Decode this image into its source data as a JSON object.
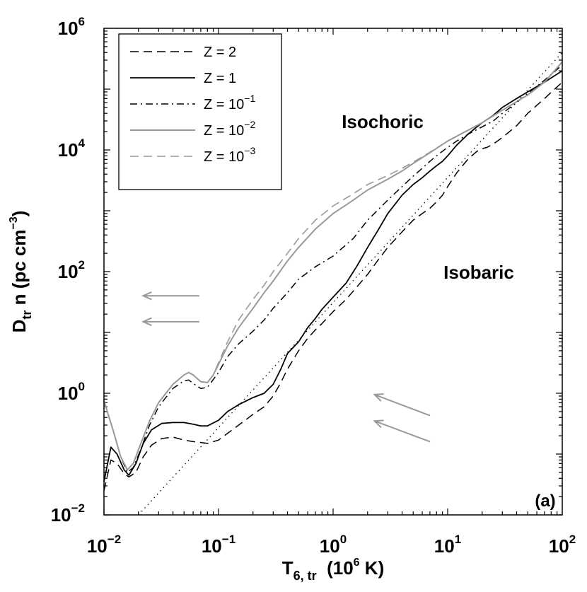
{
  "chart_data": {
    "type": "line",
    "xscale": "log",
    "yscale": "log",
    "xlim": [
      0.01,
      100
    ],
    "ylim": [
      0.01,
      1000000
    ],
    "xlabel": {
      "base": "T",
      "sub": "6, tr",
      "unit_pre": "(10",
      "unit_sup": "6",
      "unit_post": " K)"
    },
    "ylabel": {
      "base": "D",
      "sub": "tr",
      "mid": " n  (pc cm",
      "sup": "−3",
      "post": ")"
    },
    "xticks": [
      {
        "value": 0.01,
        "base": "10",
        "exp": "−2"
      },
      {
        "value": 0.1,
        "base": "10",
        "exp": "−1"
      },
      {
        "value": 1,
        "base": "10",
        "exp": "0"
      },
      {
        "value": 10,
        "base": "10",
        "exp": "1"
      },
      {
        "value": 100,
        "base": "10",
        "exp": "2"
      }
    ],
    "yticks": [
      {
        "value": 0.01,
        "base": "10",
        "exp": "−2"
      },
      {
        "value": 1,
        "base": "10",
        "exp": "0"
      },
      {
        "value": 100,
        "base": "10",
        "exp": "2"
      },
      {
        "value": 10000,
        "base": "10",
        "exp": "4"
      },
      {
        "value": 1000000,
        "base": "10",
        "exp": "6"
      }
    ],
    "annotations": {
      "isochoric": "Isochoric",
      "isobaric": "Isobaric",
      "panel": "(a)"
    },
    "arrows": [
      {
        "from": [
          0.068,
          40
        ],
        "to": [
          0.022,
          40
        ],
        "color": "#999999"
      },
      {
        "from": [
          0.068,
          15
        ],
        "to": [
          0.022,
          15
        ],
        "color": "#999999"
      },
      {
        "from": [
          7,
          0.43
        ],
        "to": [
          2.3,
          0.95
        ],
        "color": "#999999"
      },
      {
        "from": [
          7,
          0.16
        ],
        "to": [
          2.3,
          0.35
        ],
        "color": "#999999"
      }
    ],
    "series": [
      {
        "name": "Z = 2",
        "label_base": "Z = 2",
        "label_exp": "",
        "color": "#000000",
        "dash": "12,7",
        "width": 1.5,
        "x": [
          0.01,
          0.0115,
          0.013,
          0.015,
          0.0165,
          0.019,
          0.022,
          0.026,
          0.032,
          0.04,
          0.05,
          0.06,
          0.07,
          0.08,
          0.1,
          0.12,
          0.15,
          0.2,
          0.25,
          0.3,
          0.35,
          0.4,
          0.5,
          0.6,
          0.7,
          0.8,
          1,
          1.3,
          1.6,
          2,
          2.5,
          3,
          4,
          5,
          6,
          7,
          8,
          9,
          10,
          12,
          15,
          18,
          20,
          22,
          25,
          30,
          40,
          50,
          70,
          100
        ],
        "y": [
          0.025,
          0.08,
          0.07,
          0.048,
          0.042,
          0.05,
          0.09,
          0.14,
          0.18,
          0.19,
          0.17,
          0.16,
          0.155,
          0.15,
          0.17,
          0.22,
          0.3,
          0.45,
          0.6,
          0.9,
          1.5,
          2.5,
          5,
          8,
          11,
          14,
          22,
          35,
          55,
          90,
          160,
          250,
          450,
          700,
          900,
          1100,
          1400,
          1800,
          2500,
          4200,
          7000,
          9500,
          10500,
          11000,
          12500,
          16000,
          25000,
          40000,
          70000,
          130000
        ]
      },
      {
        "name": "Z = 1",
        "label_base": "Z = 1",
        "label_exp": "",
        "color": "#000000",
        "dash": "",
        "width": 1.8,
        "x": [
          0.01,
          0.0115,
          0.013,
          0.015,
          0.0165,
          0.019,
          0.022,
          0.026,
          0.032,
          0.04,
          0.05,
          0.06,
          0.07,
          0.08,
          0.1,
          0.12,
          0.15,
          0.2,
          0.25,
          0.3,
          0.35,
          0.4,
          0.5,
          0.6,
          0.7,
          0.8,
          1,
          1.3,
          1.6,
          2,
          2.5,
          3,
          4,
          5,
          6,
          7,
          8,
          9,
          10,
          12,
          15,
          18,
          20,
          25,
          30,
          40,
          50,
          70,
          100
        ],
        "y": [
          0.035,
          0.13,
          0.1,
          0.055,
          0.045,
          0.07,
          0.15,
          0.25,
          0.32,
          0.33,
          0.33,
          0.31,
          0.29,
          0.29,
          0.36,
          0.5,
          0.65,
          0.85,
          1.0,
          1.4,
          2.5,
          4.5,
          7,
          12,
          17,
          24,
          38,
          65,
          120,
          250,
          500,
          900,
          1800,
          2700,
          3500,
          4500,
          5500,
          6500,
          8000,
          12000,
          18000,
          24000,
          28000,
          37000,
          50000,
          70000,
          90000,
          130000,
          200000
        ]
      },
      {
        "name": "Z = 10^-1",
        "label_base": "Z = 10",
        "label_exp": "−1",
        "color": "#000000",
        "dash": "10,5,2,5",
        "width": 1.5,
        "x": [
          0.01,
          0.012,
          0.014,
          0.016,
          0.018,
          0.021,
          0.025,
          0.03,
          0.04,
          0.05,
          0.055,
          0.06,
          0.07,
          0.08,
          0.1,
          0.12,
          0.15,
          0.2,
          0.25,
          0.3,
          0.4,
          0.5,
          0.7,
          1,
          1.5,
          2,
          3,
          4,
          5,
          6,
          7,
          8,
          9,
          10,
          12,
          15,
          20,
          25,
          30,
          40,
          50,
          70,
          100
        ],
        "y": [
          0.75,
          0.25,
          0.09,
          0.05,
          0.06,
          0.12,
          0.3,
          0.6,
          1.2,
          1.6,
          1.65,
          1.45,
          1.2,
          1.25,
          2.2,
          4,
          6.5,
          10.5,
          16,
          25,
          45,
          75,
          120,
          180,
          350,
          700,
          1500,
          2500,
          3700,
          5000,
          6500,
          8000,
          9500,
          11000,
          14000,
          18000,
          24000,
          30000,
          40000,
          60000,
          85000,
          140000,
          250000
        ]
      },
      {
        "name": "Z = 10^-2",
        "label_base": "Z = 10",
        "label_exp": "−2",
        "color": "#999999",
        "dash": "",
        "width": 2,
        "x": [
          0.01,
          0.012,
          0.014,
          0.016,
          0.018,
          0.021,
          0.025,
          0.03,
          0.04,
          0.05,
          0.055,
          0.06,
          0.07,
          0.08,
          0.09,
          0.1,
          0.12,
          0.15,
          0.2,
          0.25,
          0.3,
          0.4,
          0.5,
          0.7,
          1,
          1.5,
          2,
          3,
          4,
          5,
          7,
          10,
          15,
          20,
          30,
          50,
          70,
          100
        ],
        "y": [
          0.75,
          0.25,
          0.09,
          0.055,
          0.07,
          0.15,
          0.35,
          0.7,
          1.4,
          2.0,
          2.2,
          2.0,
          1.55,
          1.5,
          2.0,
          3.0,
          6,
          12,
          25,
          45,
          70,
          150,
          250,
          500,
          900,
          1500,
          2200,
          3300,
          4500,
          6000,
          9000,
          14000,
          21000,
          28000,
          45000,
          80000,
          130000,
          280000
        ]
      },
      {
        "name": "Z = 10^-3",
        "label_base": "Z = 10",
        "label_exp": "−3",
        "color": "#999999",
        "dash": "12,7",
        "width": 1.6,
        "x": [
          0.01,
          0.012,
          0.014,
          0.016,
          0.018,
          0.021,
          0.025,
          0.03,
          0.04,
          0.05,
          0.055,
          0.06,
          0.07,
          0.08,
          0.09,
          0.1,
          0.12,
          0.15,
          0.2,
          0.25,
          0.3,
          0.4,
          0.5,
          0.7,
          1,
          1.5,
          2,
          3,
          4,
          5,
          7,
          10,
          15,
          20,
          30,
          50,
          70,
          100
        ],
        "y": [
          0.75,
          0.25,
          0.09,
          0.055,
          0.07,
          0.15,
          0.35,
          0.7,
          1.4,
          2.0,
          2.2,
          2.0,
          1.55,
          1.5,
          2.0,
          3.2,
          7,
          16,
          35,
          60,
          100,
          200,
          350,
          700,
          1200,
          1900,
          2700,
          3800,
          5000,
          6300,
          9200,
          14000,
          21000,
          28000,
          45000,
          80000,
          130000,
          280000
        ]
      },
      {
        "name": "reference",
        "label_base": "",
        "label_exp": "",
        "color": "#000000",
        "dash": "1.5,5",
        "width": 1.3,
        "legend": false,
        "x": [
          0.02,
          100
        ],
        "y": [
          0.01,
          400000
        ]
      }
    ]
  }
}
